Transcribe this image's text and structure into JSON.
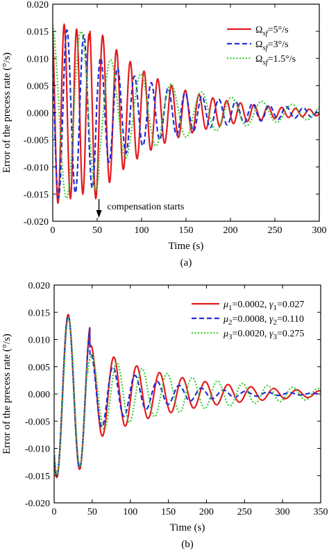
{
  "chart_data": [
    {
      "type": "line",
      "caption": "(a)",
      "xlabel": "Time (s)",
      "ylabel": "Error of the precess rate (°/s)",
      "xlim": [
        0,
        300
      ],
      "ylim": [
        -0.02,
        0.02
      ],
      "xticks": [
        "0",
        "50",
        "100",
        "150",
        "200",
        "250",
        "300"
      ],
      "yticks": [
        "-0.020",
        "-0.015",
        "-0.010",
        "-0.005",
        "0.000",
        "0.005",
        "0.010",
        "0.015",
        "0.020"
      ],
      "legend_position": "top-right",
      "annotation": {
        "text": "compensation starts",
        "x": 52
      },
      "series": [
        {
          "name_main": "Ω",
          "name_sub": "sf",
          "name_rest": "=5°/s",
          "color": "#e31a1c",
          "dash": "solid",
          "params": {
            "a0": 0.017,
            "a1": 0.0172,
            "t0": 42,
            "tau": 75,
            "p0": 14,
            "p1": 15.5,
            "phi": 0.5
          }
        },
        {
          "name_main": "Ω",
          "name_sub": "sf",
          "name_rest": "=3°/s",
          "color": "#1f2fd6",
          "dash": "dash",
          "params": {
            "a0": 0.016,
            "a1": 0.0105,
            "t0": 50,
            "tau": 95,
            "p0": 19,
            "p1": 19,
            "phi": 1.0
          }
        },
        {
          "name_main": "Ω",
          "name_sub": "sf",
          "name_rest": "=1.5°/s",
          "color": "#33cc33",
          "dash": "dot",
          "params": {
            "a0": 0.0165,
            "a1": 0.011,
            "t0": 52,
            "tau": 110,
            "p0": 33,
            "p1": 34,
            "phi": 0.2
          }
        }
      ]
    },
    {
      "type": "line",
      "caption": "(b)",
      "xlabel": "Time (s)",
      "ylabel": "Error of the precess rate (°/s)",
      "xlim": [
        0,
        350
      ],
      "ylim": [
        -0.02,
        0.02
      ],
      "xticks": [
        "0",
        "50",
        "100",
        "150",
        "200",
        "250",
        "300",
        "350"
      ],
      "yticks": [
        "-0.020",
        "-0.015",
        "-0.010",
        "-0.005",
        "0.000",
        "0.005",
        "0.010",
        "0.015",
        "0.020"
      ],
      "legend_position": "top-right",
      "series": [
        {
          "legend": [
            {
              "sym": "μ",
              "sub": "1",
              "val": "=0.0002,"
            },
            {
              "sym": "γ",
              "sub": "1",
              "val": "=0.027"
            }
          ],
          "color": "#e31a1c",
          "dash": "solid",
          "params": {
            "a0": 0.0155,
            "a1": 0.009,
            "t0": 47,
            "tau": 110,
            "p0": 30,
            "p1": 30,
            "phi": 2.4
          }
        },
        {
          "legend": [
            {
              "sym": "μ",
              "sub": "2",
              "val": "=0.0008,"
            },
            {
              "sym": "γ",
              "sub": "2",
              "val": "=0.110"
            }
          ],
          "color": "#1f2fd6",
          "dash": "dash",
          "params": {
            "a0": 0.0152,
            "a1": 0.0075,
            "t0": 47,
            "tau": 75,
            "p0": 30,
            "p1": 29,
            "phi": 2.4
          }
        },
        {
          "legend": [
            {
              "sym": "μ",
              "sub": "3",
              "val": "=0.0020,"
            },
            {
              "sym": "γ",
              "sub": "3",
              "val": "=0.275"
            }
          ],
          "color": "#33cc33",
          "dash": "dot",
          "params": {
            "a0": 0.015,
            "a1": 0.0075,
            "t0": 44,
            "tau": 150,
            "p0": 30,
            "p1": 33,
            "phi": 2.3
          }
        }
      ]
    }
  ]
}
